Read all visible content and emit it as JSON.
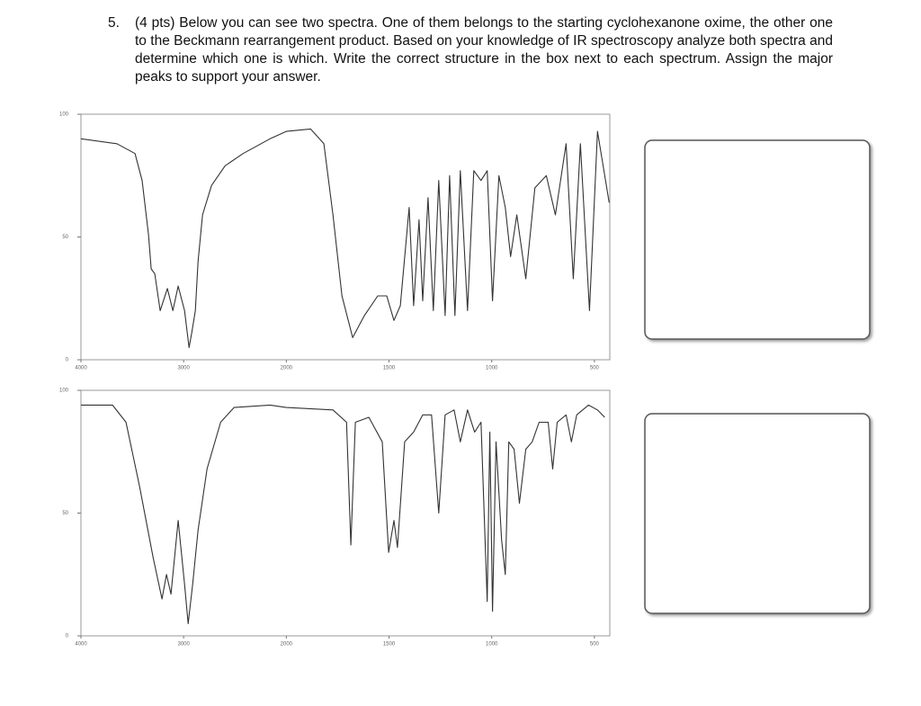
{
  "question": {
    "number": "5.",
    "text": "(4 pts) Below you can see two spectra. One of them belongs to the starting cyclohexanone oxime, the other one to the Beckmann rearrangement product. Based on your knowledge of IR spectroscopy analyze both spectra and determine which one is which. Write the correct structure in the box next to each spectrum. Assign the major peaks to support your answer."
  },
  "chart_data": [
    {
      "type": "line",
      "color": "#333333",
      "x": [
        4000,
        3650,
        3474,
        3404,
        3342,
        3316,
        3281,
        3228,
        3158,
        3105,
        3053,
        2991,
        2947,
        2921,
        2886,
        2860,
        2816,
        2728,
        2596,
        2421,
        2158,
        2000,
        1882,
        1817,
        1773,
        1729,
        1677,
        1620,
        1555,
        1511,
        1476,
        1445,
        1402,
        1380,
        1354,
        1336,
        1310,
        1284,
        1258,
        1227,
        1205,
        1179,
        1153,
        1118,
        1087,
        1052,
        1022,
        996,
        965,
        934,
        908,
        878,
        834,
        790,
        734,
        690,
        638,
        603,
        568,
        524,
        485,
        428
      ],
      "values": [
        90,
        88,
        84,
        73,
        51,
        37,
        35,
        20,
        29,
        20,
        30,
        20,
        5,
        11,
        20,
        40,
        59,
        71,
        79,
        84,
        90,
        93,
        94,
        88,
        59,
        26,
        9,
        18,
        26,
        26,
        16,
        22,
        62,
        22,
        57,
        24,
        66,
        20,
        73,
        18,
        75,
        18,
        77,
        20,
        77,
        73,
        77,
        24,
        75,
        62,
        42,
        59,
        33,
        70,
        75,
        59,
        88,
        33,
        88,
        20,
        93,
        64
      ],
      "xlim": [
        4000,
        425
      ],
      "xticks": [
        4000,
        3000,
        2000,
        1500,
        1000,
        500
      ],
      "x_break": 2000,
      "ylim": [
        0,
        100
      ],
      "yticks": [
        0,
        50,
        100
      ]
    },
    {
      "type": "line",
      "color": "#333333",
      "x": [
        4000,
        3693,
        3561,
        3430,
        3298,
        3211,
        3167,
        3123,
        3053,
        2991,
        2956,
        2912,
        2860,
        2772,
        2640,
        2509,
        2158,
        2000,
        1773,
        1707,
        1686,
        1664,
        1598,
        1533,
        1502,
        1476,
        1459,
        1424,
        1380,
        1336,
        1293,
        1258,
        1227,
        1183,
        1153,
        1118,
        1083,
        1052,
        1022,
        1009,
        996,
        979,
        952,
        934,
        917,
        891,
        865,
        834,
        803,
        769,
        725,
        703,
        681,
        638,
        612,
        586,
        529,
        485,
        450
      ],
      "values": [
        94,
        94,
        87,
        61,
        32,
        15,
        25,
        17,
        47,
        21,
        5,
        21,
        43,
        68,
        87,
        93,
        94,
        93,
        92,
        87,
        37,
        87,
        89,
        79,
        34,
        47,
        36,
        79,
        83,
        90,
        90,
        50,
        90,
        92,
        79,
        92,
        83,
        87,
        14,
        83,
        10,
        79,
        39,
        25,
        79,
        76,
        54,
        76,
        79,
        87,
        87,
        68,
        87,
        90,
        79,
        90,
        94,
        92,
        89
      ],
      "xlim": [
        4000,
        425
      ],
      "xticks": [
        4000,
        3000,
        2000,
        1500,
        1000,
        500
      ],
      "x_break": 2000,
      "ylim": [
        0,
        100
      ],
      "yticks": [
        0,
        50,
        100
      ]
    }
  ]
}
